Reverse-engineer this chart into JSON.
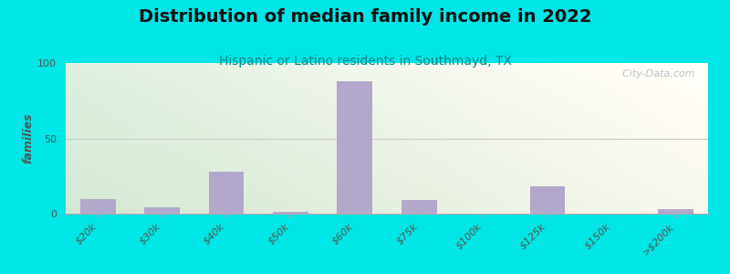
{
  "title": "Distribution of median family income in 2022",
  "subtitle": "Hispanic or Latino residents in Southmayd, TX",
  "ylabel": "families",
  "categories": [
    "$20k",
    "$30k",
    "$40k",
    "$50k",
    "$60k",
    "$75k",
    "$100k",
    "$125k",
    "$150k",
    ">$200k"
  ],
  "values": [
    10,
    4,
    28,
    1,
    88,
    9,
    0,
    18,
    0,
    3
  ],
  "bar_color": "#b3a8cc",
  "background_outer": "#00e5e5",
  "ylim": [
    0,
    100
  ],
  "yticks": [
    0,
    50,
    100
  ],
  "title_fontsize": 14,
  "subtitle_fontsize": 10,
  "ylabel_fontsize": 9,
  "watermark": "  City-Data.com"
}
